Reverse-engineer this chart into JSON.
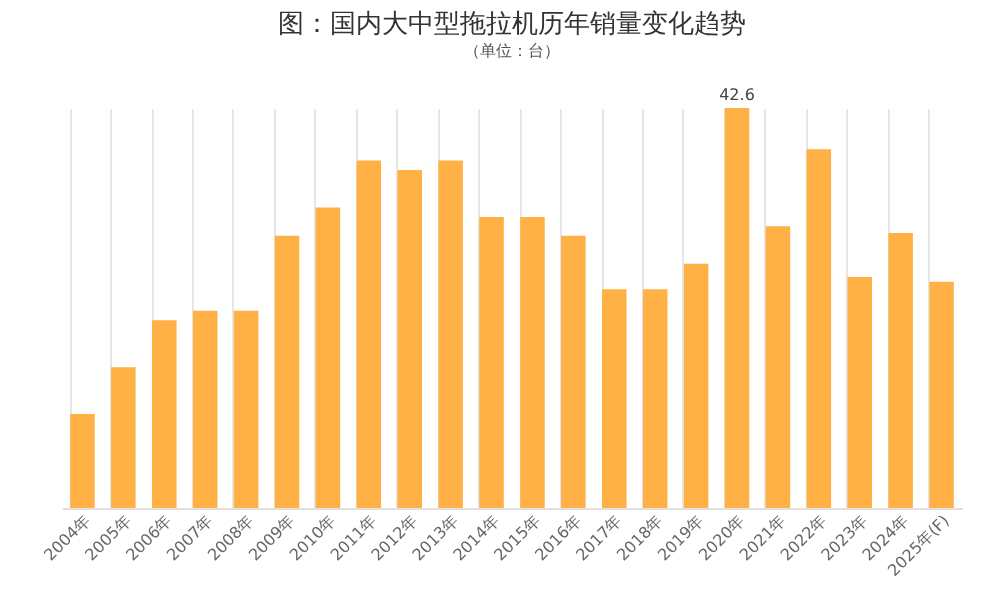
{
  "chart_data": {
    "type": "bar",
    "title": "图：国内大中型拖拉机历年销量变化趋势",
    "subtitle": "（单位：台）",
    "categories": [
      "2004年",
      "2005年",
      "2006年",
      "2007年",
      "2008年",
      "2009年",
      "2010年",
      "2011年",
      "2012年",
      "2013年",
      "2014年",
      "2015年",
      "2016年",
      "2017年",
      "2018年",
      "2019年",
      "2020年",
      "2021年",
      "2022年",
      "2023年",
      "2024年",
      "2025年(F)"
    ],
    "values": [
      10.0,
      15.0,
      20.0,
      21.0,
      21.0,
      29.0,
      32.0,
      37.0,
      36.0,
      37.0,
      31.0,
      31.0,
      29.0,
      23.3,
      23.3,
      26.0,
      42.6,
      30.0,
      38.2,
      24.6,
      29.3,
      24.1
    ],
    "value_labels": [
      null,
      null,
      null,
      null,
      null,
      null,
      null,
      null,
      null,
      null,
      null,
      null,
      null,
      null,
      null,
      null,
      "42.6",
      null,
      null,
      null,
      null,
      null
    ],
    "color": "#ffb145",
    "grid": "x"
  }
}
